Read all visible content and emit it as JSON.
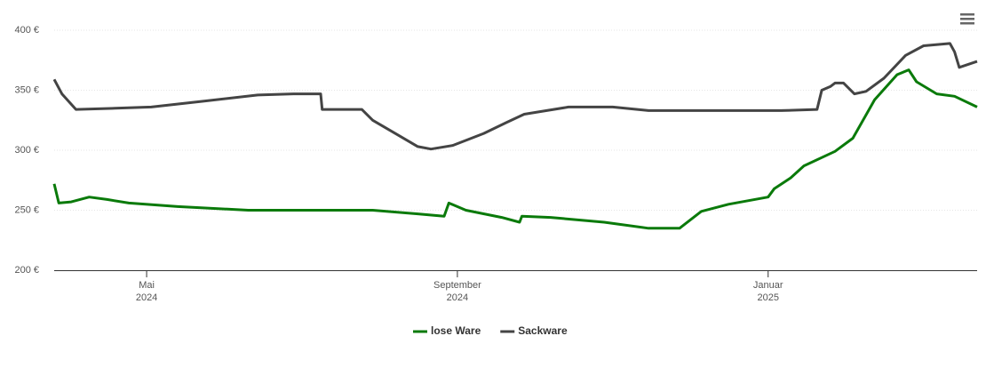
{
  "chart_data": {
    "type": "line",
    "series": [
      {
        "name": "lose Ware",
        "color": "#0a7a0a",
        "x": [
          3.81,
          3.87,
          4.03,
          4.26,
          4.49,
          4.77,
          5.4,
          6.31,
          7.91,
          8.49,
          8.83,
          8.89,
          9.11,
          9.57,
          9.8,
          9.83,
          10.2,
          10.89,
          11.46,
          11.86,
          12.14,
          12.49,
          13.0,
          13.08,
          13.29,
          13.46,
          13.86,
          14.09,
          14.37,
          14.66,
          14.81,
          14.91,
          15.17,
          15.4,
          15.69
        ],
        "values": [
          272,
          256,
          257,
          261,
          259,
          256,
          253,
          250,
          250,
          247,
          245,
          256,
          250,
          244,
          240,
          245,
          244,
          240,
          235,
          235,
          249,
          255,
          261,
          268,
          277,
          287,
          299,
          310,
          342,
          363,
          367,
          357,
          347,
          345,
          336
        ]
      },
      {
        "name": "Sackware",
        "color": "#444444",
        "x": [
          3.81,
          3.91,
          4.09,
          4.6,
          5.06,
          5.74,
          6.43,
          6.89,
          7.24,
          7.26,
          7.77,
          7.91,
          8.2,
          8.49,
          8.66,
          8.94,
          9.34,
          9.63,
          9.86,
          10.43,
          11.0,
          11.46,
          12.26,
          13.17,
          13.63,
          13.69,
          13.8,
          13.86,
          13.97,
          14.11,
          14.26,
          14.49,
          14.77,
          15.0,
          15.34,
          15.4,
          15.46,
          15.69
        ],
        "values": [
          359,
          347,
          334,
          335,
          336,
          341,
          346,
          347,
          347,
          334,
          334,
          325,
          314,
          303,
          301,
          304,
          314,
          323,
          330,
          336,
          336,
          333,
          333,
          333,
          334,
          350,
          353,
          356,
          356,
          347,
          349,
          360,
          379,
          387,
          389,
          382,
          369,
          374
        ]
      }
    ],
    "xlim": [
      3.81,
      15.69
    ],
    "xticks": [
      {
        "value": 5,
        "label": "Mai 2024"
      },
      {
        "value": 9,
        "label": "September 2024"
      },
      {
        "value": 13,
        "label": "Januar 2025"
      }
    ],
    "ylim": [
      200,
      400
    ],
    "yticks": [
      {
        "value": 200,
        "label": "200 €"
      },
      {
        "value": 250,
        "label": "250 €"
      },
      {
        "value": 300,
        "label": "300 €"
      },
      {
        "value": 350,
        "label": "350 €"
      },
      {
        "value": 400,
        "label": "400 €"
      }
    ],
    "grid": true
  }
}
